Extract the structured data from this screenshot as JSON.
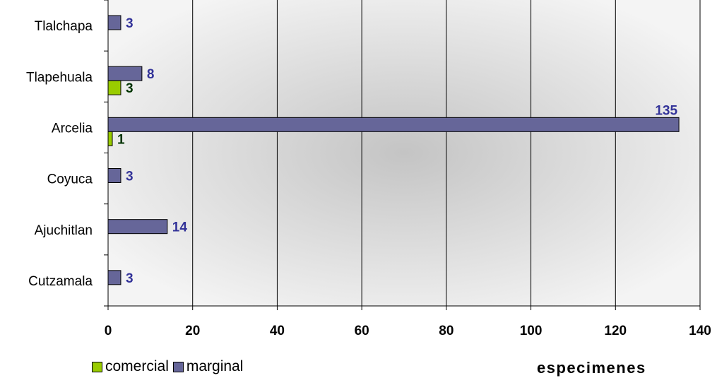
{
  "chart_data": {
    "type": "bar",
    "orientation": "horizontal",
    "categories": [
      "Tlalchapa",
      "Tlapehuala",
      "Arcelia",
      "Coyuca",
      "Ajuchitlan",
      "Cutzamala"
    ],
    "series": [
      {
        "name": "marginal",
        "color": "#666699",
        "values": [
          3,
          8,
          135,
          3,
          14,
          3
        ],
        "label_color": "#333399"
      },
      {
        "name": "comercial",
        "color": "#99cc00",
        "values": [
          null,
          3,
          1,
          null,
          null,
          null
        ],
        "label_color": "#003300"
      }
    ],
    "xlabel": "especimenes",
    "ylabel": "",
    "xlim": [
      0,
      140
    ],
    "xticks": [
      "0",
      "20",
      "40",
      "60",
      "80",
      "100",
      "120",
      "140"
    ],
    "grid": "vertical",
    "legend_position": "bottom-left"
  }
}
